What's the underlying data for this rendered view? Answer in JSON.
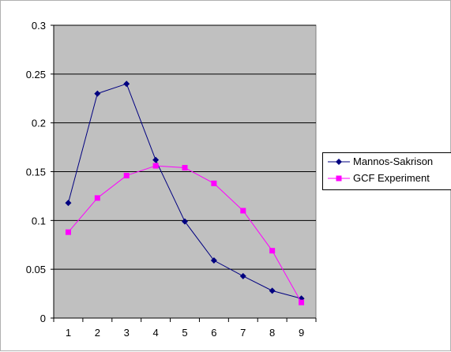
{
  "chart_data": {
    "type": "line",
    "title": "",
    "xlabel": "",
    "ylabel": "",
    "x": [
      1,
      2,
      3,
      4,
      5,
      6,
      7,
      8,
      9
    ],
    "ylim": [
      0,
      0.3
    ],
    "y_ticks": [
      "0",
      "0.05",
      "0.1",
      "0.15",
      "0.2",
      "0.25",
      "0.3"
    ],
    "x_ticks": [
      "1",
      "2",
      "3",
      "4",
      "5",
      "6",
      "7",
      "8",
      "9"
    ],
    "grid": "horizontal",
    "plot_background": "#c0c0c0",
    "legend_position": "right",
    "series": [
      {
        "name": "Mannos-Sakrison",
        "color": "#000080",
        "marker": "diamond",
        "values": [
          0.118,
          0.23,
          0.24,
          0.162,
          0.099,
          0.059,
          0.043,
          0.028,
          0.02
        ]
      },
      {
        "name": "GCF Experiment",
        "color": "#ff00ff",
        "marker": "square",
        "values": [
          0.088,
          0.123,
          0.146,
          0.156,
          0.154,
          0.138,
          0.11,
          0.069,
          0.016
        ]
      }
    ]
  }
}
